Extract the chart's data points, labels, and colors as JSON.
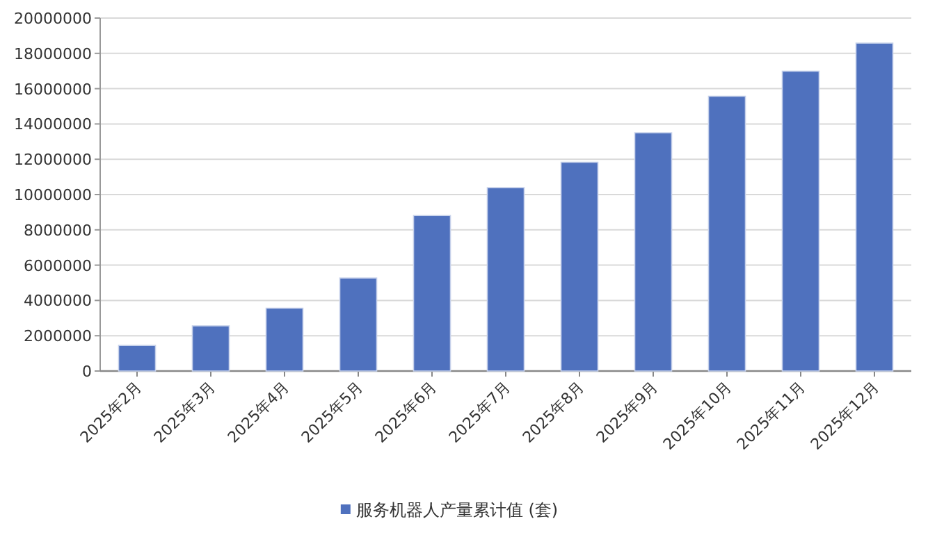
{
  "chart_data": {
    "type": "bar",
    "categories": [
      "2025年2月",
      "2025年3月",
      "2025年4月",
      "2025年5月",
      "2025年6月",
      "2025年7月",
      "2025年8月",
      "2025年9月",
      "2025年10月",
      "2025年11月",
      "2025年12月"
    ],
    "series": [
      {
        "name": "服务机器人产量累计值 (套)",
        "color": "#4f71be",
        "values": [
          1450000,
          2560000,
          3560000,
          5270000,
          8810000,
          10390000,
          11830000,
          13500000,
          15570000,
          16990000,
          18580000
        ]
      }
    ],
    "ylim": [
      0,
      20000000
    ],
    "yticks": [
      0,
      2000000,
      4000000,
      6000000,
      8000000,
      10000000,
      12000000,
      14000000,
      16000000,
      18000000,
      20000000
    ],
    "grid": "y",
    "legend": "bottom"
  }
}
